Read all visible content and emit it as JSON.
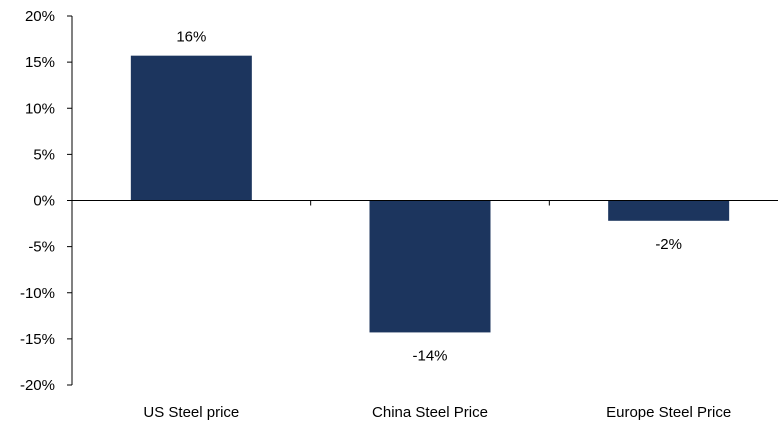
{
  "chart_data": {
    "type": "bar",
    "title": "",
    "xlabel": "",
    "ylabel": "",
    "categories": [
      "US Steel price",
      "China Steel Price",
      "Europe Steel Price"
    ],
    "values": [
      15.7,
      -14.3,
      -2.2
    ],
    "data_labels": [
      "16%",
      "-14%",
      "-2%"
    ],
    "ylim": [
      -20,
      20
    ],
    "y_ticks": [
      20,
      15,
      10,
      5,
      0,
      -5,
      -10,
      -15,
      -20
    ],
    "y_tick_labels": [
      "20%",
      "15%",
      "10%",
      "5%",
      "0%",
      "-5%",
      "-10%",
      "-15%",
      "-20%"
    ],
    "grid": false,
    "legend": "none",
    "bar_color": "#1c355e"
  }
}
